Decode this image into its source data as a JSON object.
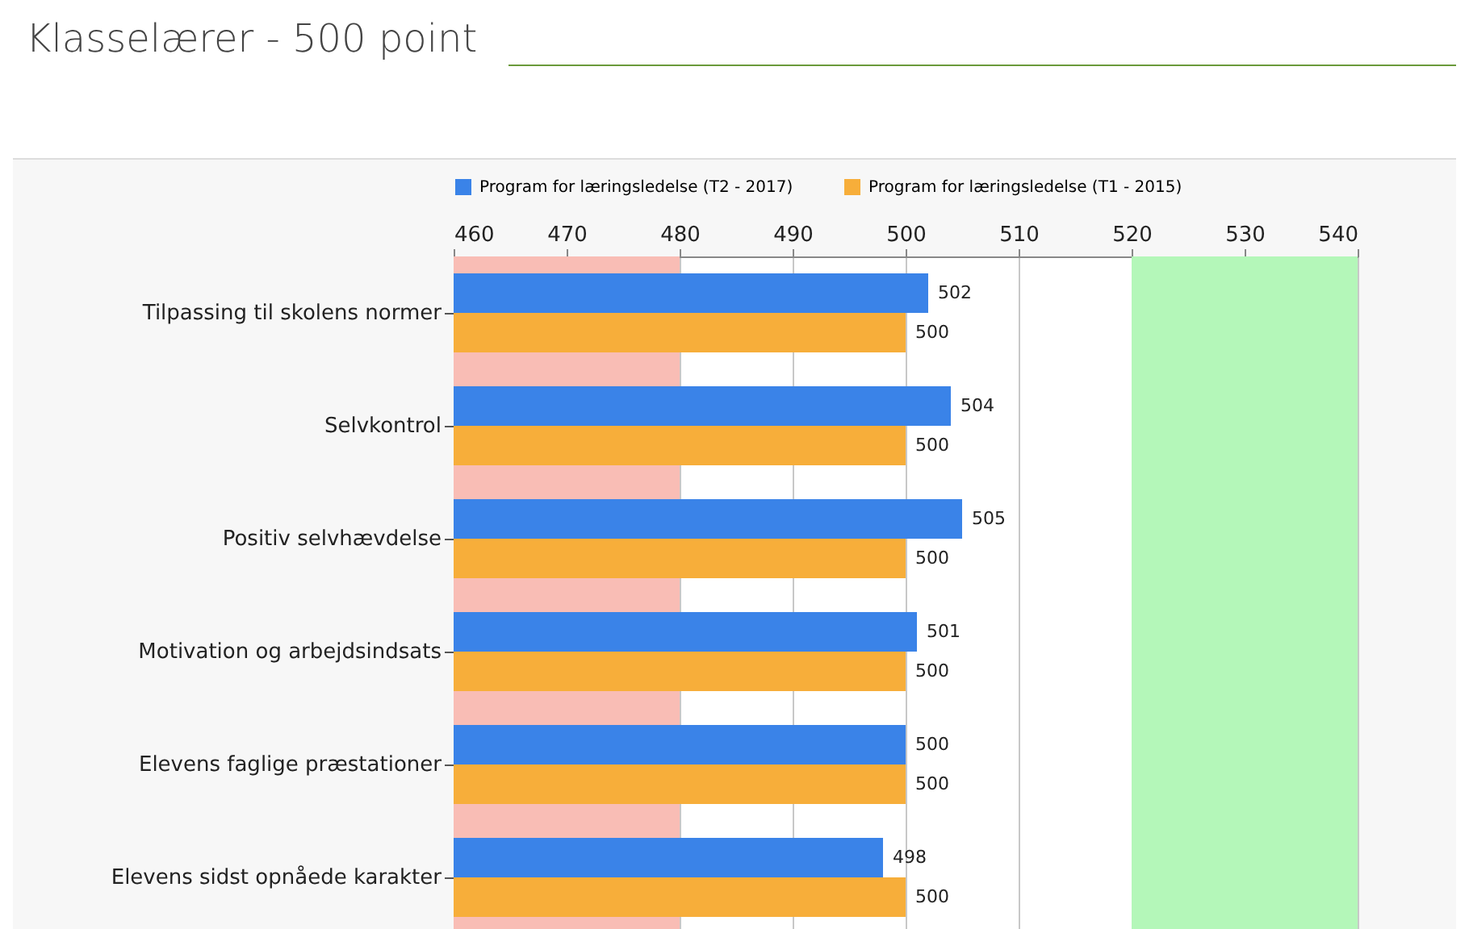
{
  "chart_data": {
    "type": "bar",
    "orientation": "horizontal",
    "title": "Klasselærer - 500 point",
    "categories": [
      "Tilpassing til skolens normer",
      "Selvkontrol",
      "Positiv selvhævdelse",
      "Motivation og arbejdsindsats",
      "Elevens faglige præstationer",
      "Elevens sidst opnåede karakter"
    ],
    "series": [
      {
        "name": "Program for læringsledelse (T2 - 2017)",
        "color": "#3a83e8",
        "values": [
          502,
          504,
          505,
          501,
          500,
          498
        ]
      },
      {
        "name": "Program for læringsledelse (T1 - 2015)",
        "color": "#f7ae3a",
        "values": [
          500,
          500,
          500,
          500,
          500,
          500
        ]
      }
    ],
    "xlim": [
      460,
      540
    ],
    "xticks": [
      460,
      470,
      480,
      490,
      500,
      510,
      520,
      530,
      540
    ],
    "bands": [
      {
        "axis": "x",
        "from": 460,
        "to": 480,
        "color": "#f9bdb5"
      },
      {
        "axis": "x",
        "from": 520,
        "to": 540,
        "color": "#b4f7b9"
      }
    ],
    "grid": "x",
    "legend": "top",
    "data_labels": true
  }
}
